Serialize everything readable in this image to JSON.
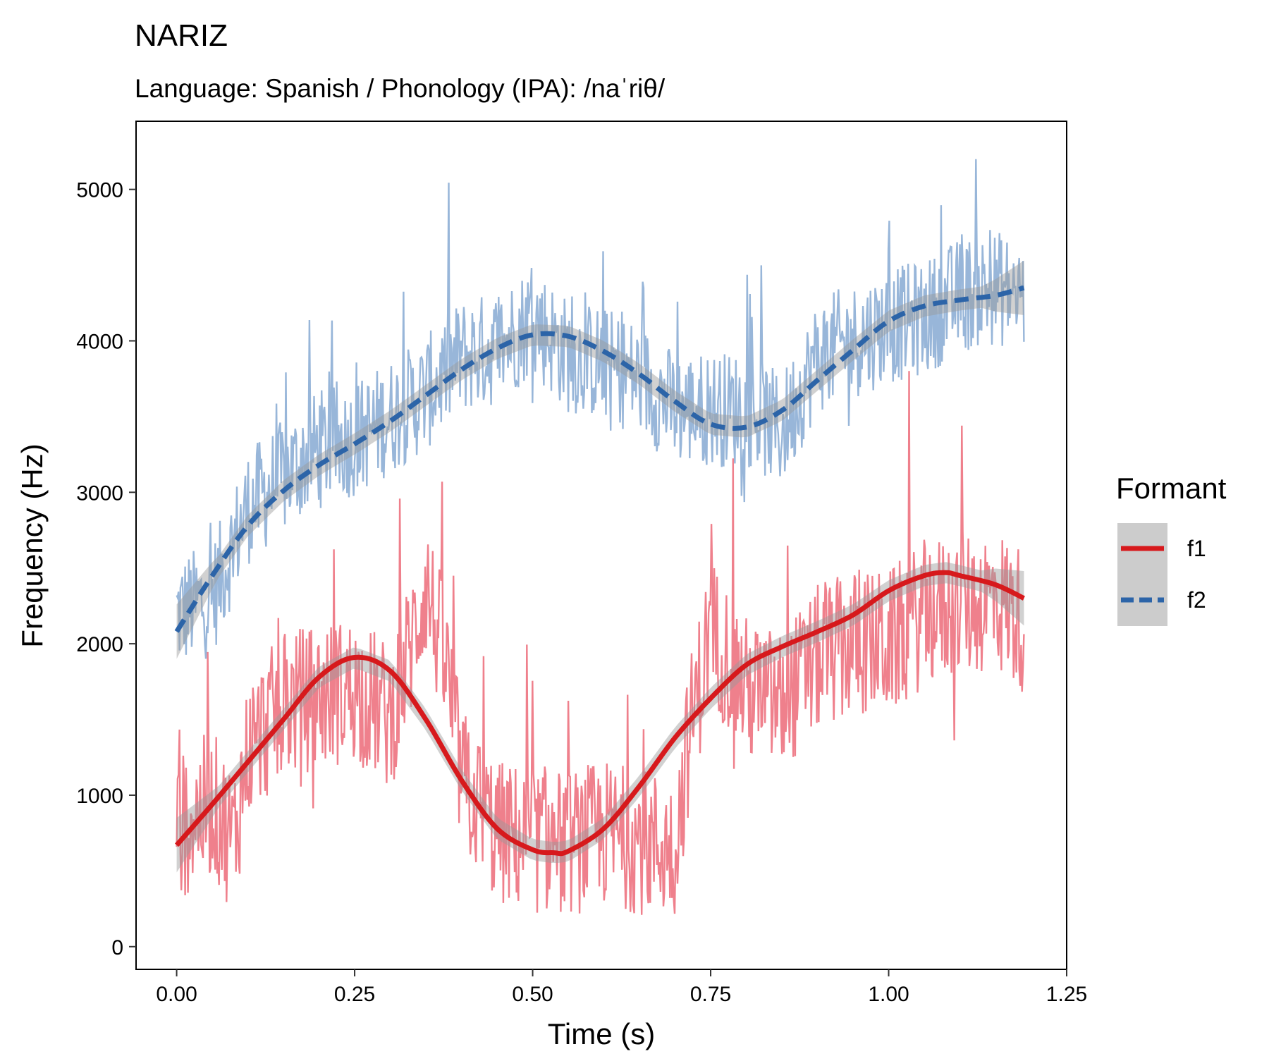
{
  "chart_data": {
    "type": "line",
    "title": "NARIZ",
    "subtitle": "Language: Spanish / Phonology (IPA): /naˈriθ/",
    "xlabel": "Time (s)",
    "ylabel": "Frequency (Hz)",
    "xlim": [
      -0.057,
      1.25
    ],
    "ylim": [
      -150,
      5450
    ],
    "x_ticks": [
      0,
      0.25,
      0.5,
      0.75,
      1.0,
      1.25
    ],
    "x_tick_labels": [
      "0.00",
      "0.25",
      "0.50",
      "0.75",
      "1.00",
      "1.25"
    ],
    "y_ticks": [
      0,
      1000,
      2000,
      3000,
      4000,
      5000
    ],
    "y_tick_labels": [
      "0",
      "1000",
      "2000",
      "3000",
      "4000",
      "5000"
    ],
    "grid": false,
    "legend": {
      "title": "Formant",
      "position": "right",
      "entries": [
        {
          "label": "f1",
          "color": "#d7191c",
          "linestyle": "solid"
        },
        {
          "label": "f2",
          "color": "#2c64a8",
          "linestyle": "dashed"
        }
      ]
    },
    "series": [
      {
        "name": "f1",
        "color": "#d7191c",
        "raw_color": "#ec6a78",
        "smooth": {
          "x": [
            0.0,
            0.05,
            0.1,
            0.15,
            0.2,
            0.25,
            0.3,
            0.35,
            0.4,
            0.45,
            0.5,
            0.53,
            0.55,
            0.6,
            0.65,
            0.7,
            0.75,
            0.8,
            0.85,
            0.9,
            0.95,
            1.0,
            1.05,
            1.08,
            1.1,
            1.15,
            1.19
          ],
          "y": [
            670,
            940,
            1220,
            1500,
            1780,
            1910,
            1820,
            1500,
            1100,
            780,
            640,
            620,
            630,
            780,
            1060,
            1380,
            1640,
            1860,
            1980,
            2080,
            2190,
            2350,
            2450,
            2470,
            2450,
            2390,
            2300
          ]
        },
        "raw_anchors": {
          "x": [
            0.0,
            0.02,
            0.05,
            0.08,
            0.1,
            0.15,
            0.2,
            0.25,
            0.28,
            0.3,
            0.33,
            0.35,
            0.38,
            0.4,
            0.45,
            0.5,
            0.55,
            0.6,
            0.65,
            0.7,
            0.72,
            0.75,
            0.8,
            0.85,
            0.9,
            0.95,
            1.0,
            1.05,
            1.1,
            1.15,
            1.19
          ],
          "y": [
            750,
            850,
            950,
            700,
            1300,
            1600,
            1650,
            1700,
            1600,
            1500,
            2000,
            2400,
            1800,
            1100,
            750,
            700,
            680,
            750,
            700,
            650,
            1400,
            2100,
            1700,
            1600,
            1900,
            2000,
            2000,
            2200,
            2250,
            2300,
            2150
          ]
        },
        "raw_noise": 700
      },
      {
        "name": "f2",
        "color": "#2c64a8",
        "raw_color": "#86a9d2",
        "smooth": {
          "x": [
            0.0,
            0.05,
            0.1,
            0.15,
            0.2,
            0.25,
            0.3,
            0.35,
            0.4,
            0.45,
            0.5,
            0.55,
            0.6,
            0.65,
            0.7,
            0.75,
            0.8,
            0.85,
            0.9,
            0.95,
            1.0,
            1.05,
            1.1,
            1.15,
            1.19
          ],
          "y": [
            2080,
            2450,
            2780,
            3010,
            3180,
            3320,
            3470,
            3640,
            3810,
            3950,
            4040,
            4030,
            3930,
            3780,
            3600,
            3450,
            3430,
            3540,
            3740,
            3940,
            4130,
            4230,
            4270,
            4300,
            4350
          ]
        },
        "raw_anchors": {
          "x": [
            0.0,
            0.05,
            0.1,
            0.15,
            0.2,
            0.25,
            0.3,
            0.35,
            0.4,
            0.45,
            0.5,
            0.55,
            0.6,
            0.65,
            0.7,
            0.75,
            0.8,
            0.85,
            0.9,
            0.95,
            1.0,
            1.05,
            1.1,
            1.15,
            1.19
          ],
          "y": [
            2200,
            2300,
            2900,
            3100,
            3300,
            3350,
            3500,
            3650,
            3900,
            3950,
            4150,
            3900,
            3850,
            3750,
            3550,
            3550,
            3550,
            3400,
            3900,
            4000,
            4100,
            4150,
            4300,
            4350,
            4300
          ]
        },
        "raw_noise": 550
      }
    ]
  }
}
